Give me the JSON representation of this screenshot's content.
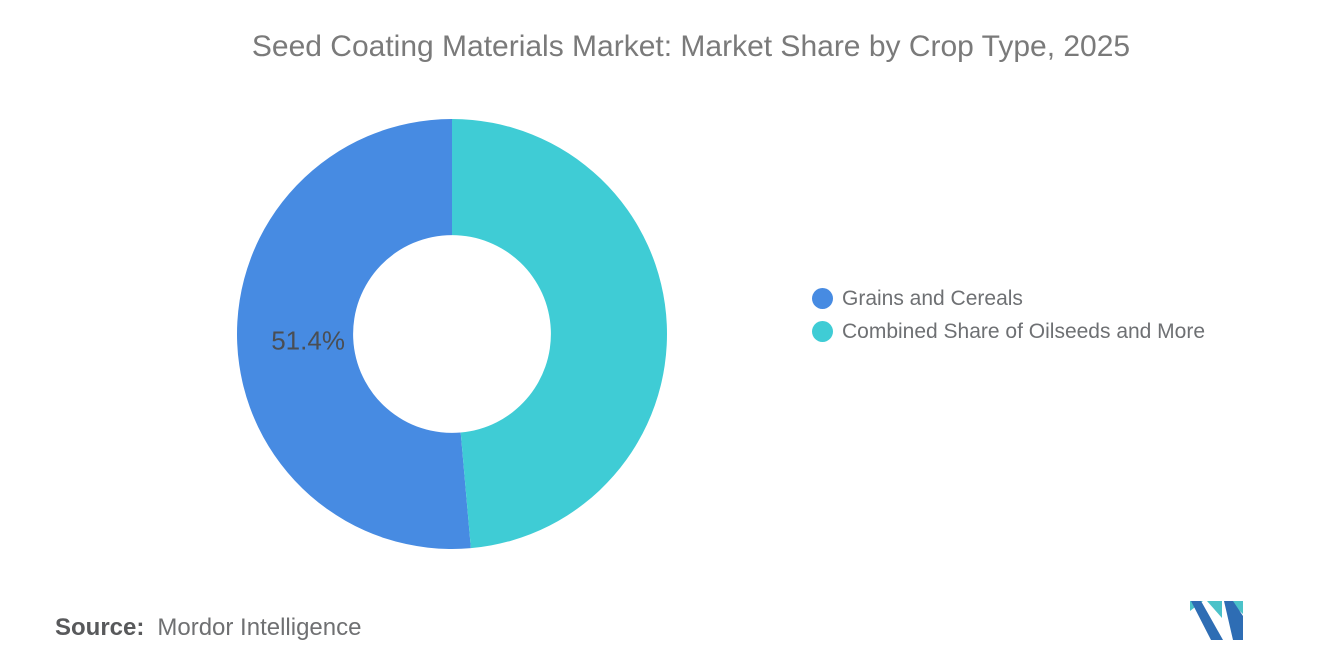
{
  "title": "Seed Coating Materials Market: Market Share by Crop Type, 2025",
  "chart_data": {
    "type": "pie",
    "subtype": "donut",
    "title": "Seed Coating Materials Market: Market Share by Crop Type, 2025",
    "start_angle_deg": 0,
    "direction": "counterclockwise",
    "inner_radius_ratio": 0.46,
    "legend_position": "right",
    "values_are_percent": true,
    "slices": [
      {
        "name": "Grains and Cereals",
        "value": 51.4,
        "label": "51.4%",
        "color": "#478BE2"
      },
      {
        "name": "Combined Share of Oilseeds and More",
        "value": 48.6,
        "label": "",
        "color": "#3FCCD5"
      }
    ]
  },
  "footer": {
    "source_label": "Source:",
    "source_text": "Mordor Intelligence"
  },
  "logo": {
    "name": "mordor-intelligence-logo"
  },
  "colors": {
    "background": "#FFFFFF",
    "title_text": "#7A7A7A",
    "legend_text": "#6E7073",
    "slice_label_text": "#4A4E53",
    "source_label_text": "#58595B",
    "source_text": "#6F7072",
    "slice_blue": "#478BE2",
    "slice_teal": "#3FCCD5",
    "logo_blue": "#2E6DB4",
    "logo_teal": "#4BC2C9"
  }
}
